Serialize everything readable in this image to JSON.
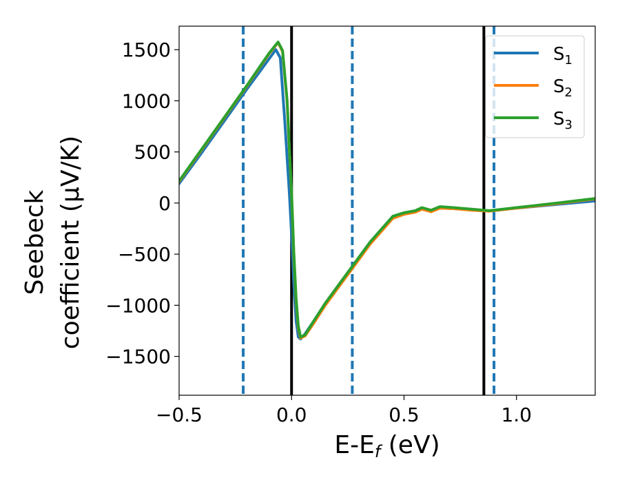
{
  "chart_data": {
    "type": "line",
    "xlabel": "E-E_f (eV)",
    "ylabel_line1": "Seebeck",
    "ylabel_line2": "coefficient  (μV/K)",
    "xlim": [
      -0.5,
      1.35
    ],
    "ylim": [
      -1880,
      1730
    ],
    "xticks": [
      -0.5,
      0.0,
      0.5,
      1.0
    ],
    "xtick_labels": [
      "−0.5",
      "0.0",
      "0.5",
      "1.0"
    ],
    "yticks": [
      1500,
      1000,
      500,
      0,
      -500,
      -1000,
      -1500
    ],
    "ytick_labels": [
      "1500",
      "1000",
      "500",
      "0",
      "−500",
      "−1000",
      "−1500"
    ],
    "grid": false,
    "legend_position": "top-right",
    "vlines_solid": [
      0.0,
      0.855
    ],
    "vlines_dashed": [
      -0.215,
      0.27,
      0.9
    ],
    "vline_solid_color": "#000000",
    "vline_dashed_color": "#1f77b4",
    "series": [
      {
        "name": "S1",
        "color": "#1f77b4",
        "x": [
          -0.5,
          -0.4,
          -0.3,
          -0.2,
          -0.1,
          -0.07,
          -0.05,
          -0.03,
          -0.01,
          0.0,
          0.01,
          0.02,
          0.03,
          0.04,
          0.06,
          0.1,
          0.15,
          0.2,
          0.27,
          0.35,
          0.45,
          0.5,
          0.55,
          0.58,
          0.62,
          0.66,
          0.72,
          0.8,
          0.88,
          1.0,
          1.1,
          1.2,
          1.35
        ],
        "y": [
          190,
          490,
          800,
          1110,
          1410,
          1500,
          1420,
          800,
          100,
          -300,
          -800,
          -1150,
          -1310,
          -1330,
          -1280,
          -1150,
          -980,
          -830,
          -620,
          -380,
          -130,
          -95,
          -80,
          -55,
          -80,
          -50,
          -55,
          -65,
          -75,
          -50,
          -30,
          -10,
          20
        ]
      },
      {
        "name": "S2",
        "color": "#ff7f0e",
        "x": [
          -0.5,
          -0.4,
          -0.3,
          -0.2,
          -0.1,
          -0.06,
          -0.04,
          -0.02,
          0.0,
          0.01,
          0.02,
          0.03,
          0.04,
          0.06,
          0.1,
          0.15,
          0.2,
          0.27,
          0.35,
          0.45,
          0.5,
          0.55,
          0.58,
          0.62,
          0.66,
          0.72,
          0.8,
          0.88,
          1.0,
          1.1,
          1.2,
          1.35
        ],
        "y": [
          210,
          520,
          830,
          1140,
          1460,
          1570,
          1480,
          1000,
          100,
          -500,
          -950,
          -1220,
          -1320,
          -1300,
          -1170,
          -1000,
          -850,
          -640,
          -400,
          -150,
          -110,
          -90,
          -60,
          -85,
          -50,
          -55,
          -70,
          -80,
          -50,
          -25,
          0,
          40
        ]
      },
      {
        "name": "S3",
        "color": "#2ca02c",
        "x": [
          -0.5,
          -0.4,
          -0.3,
          -0.2,
          -0.1,
          -0.06,
          -0.04,
          -0.02,
          0.0,
          0.01,
          0.02,
          0.03,
          0.04,
          0.06,
          0.1,
          0.15,
          0.2,
          0.27,
          0.35,
          0.45,
          0.5,
          0.55,
          0.58,
          0.62,
          0.66,
          0.72,
          0.8,
          0.88,
          1.0,
          1.1,
          1.2,
          1.35
        ],
        "y": [
          215,
          525,
          835,
          1145,
          1465,
          1575,
          1490,
          1010,
          110,
          -480,
          -930,
          -1200,
          -1310,
          -1290,
          -1150,
          -980,
          -830,
          -620,
          -380,
          -130,
          -95,
          -75,
          -45,
          -70,
          -35,
          -45,
          -60,
          -75,
          -45,
          -20,
          5,
          45
        ]
      }
    ]
  },
  "legend": {
    "items": [
      {
        "base": "S",
        "sub": "1",
        "color": "#1f77b4"
      },
      {
        "base": "S",
        "sub": "2",
        "color": "#ff7f0e"
      },
      {
        "base": "S",
        "sub": "3",
        "color": "#2ca02c"
      }
    ]
  }
}
